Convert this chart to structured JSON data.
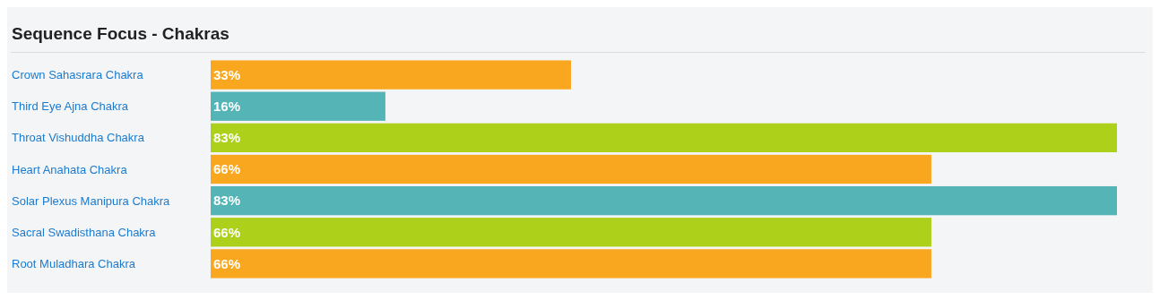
{
  "chart_data": {
    "type": "bar",
    "orientation": "horizontal",
    "title": "Sequence Focus - Chakras",
    "categories": [
      "Crown Sahasrara Chakra",
      "Third Eye Ajna Chakra",
      "Throat Vishuddha Chakra",
      "Heart Anahata Chakra",
      "Solar Plexus Manipura Chakra",
      "Sacral Swadisthana Chakra",
      "Root Muladhara Chakra"
    ],
    "values": [
      33,
      16,
      83,
      66,
      83,
      66,
      66
    ],
    "value_labels": [
      "33%",
      "16%",
      "83%",
      "66%",
      "83%",
      "66%",
      "66%"
    ],
    "colors": [
      "#f9a71e",
      "#54b4b6",
      "#add11b",
      "#f9a71e",
      "#54b4b6",
      "#add11b",
      "#f9a71e"
    ],
    "xlim": [
      0,
      83
    ]
  }
}
